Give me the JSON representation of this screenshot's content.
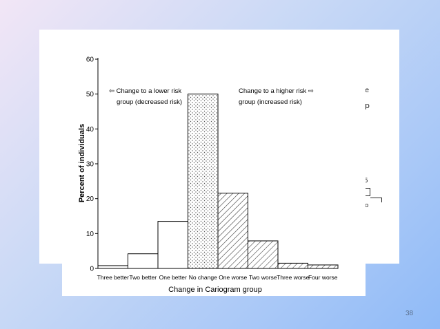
{
  "slide": {
    "page_number": "38",
    "background_colors": [
      "#f2e6f6",
      "#8fbaf7"
    ],
    "ghost_text": {
      "e": "e",
      "p": "p",
      "five": "5",
      "o": "o"
    }
  },
  "chart_data": {
    "type": "bar",
    "xlabel": "Change in Cariogram group",
    "ylabel": "Percent of individuals",
    "ylim": [
      0,
      60
    ],
    "yticks": [
      0,
      10,
      20,
      30,
      40,
      50,
      60
    ],
    "categories": [
      "Three better",
      "Two better",
      "One better",
      "No change",
      "One worse",
      "Two worse",
      "Three worse",
      "Four worse"
    ],
    "values": [
      0.8,
      4.2,
      13.5,
      50.0,
      21.6,
      7.9,
      1.5,
      1.0
    ],
    "fill_patterns": [
      "none",
      "none",
      "none",
      "dots",
      "diagonal",
      "diagonal",
      "diagonal",
      "diagonal"
    ],
    "grid": false,
    "annotations": {
      "lower_line1": "Change to a lower risk",
      "lower_line2": "group (decreased risk)",
      "higher_line1": "Change to a higher risk",
      "higher_line2": "group (increased risk)"
    },
    "colors": {
      "bar_stroke": "#000000",
      "hatch": "#333333",
      "dot": "#555555"
    }
  }
}
